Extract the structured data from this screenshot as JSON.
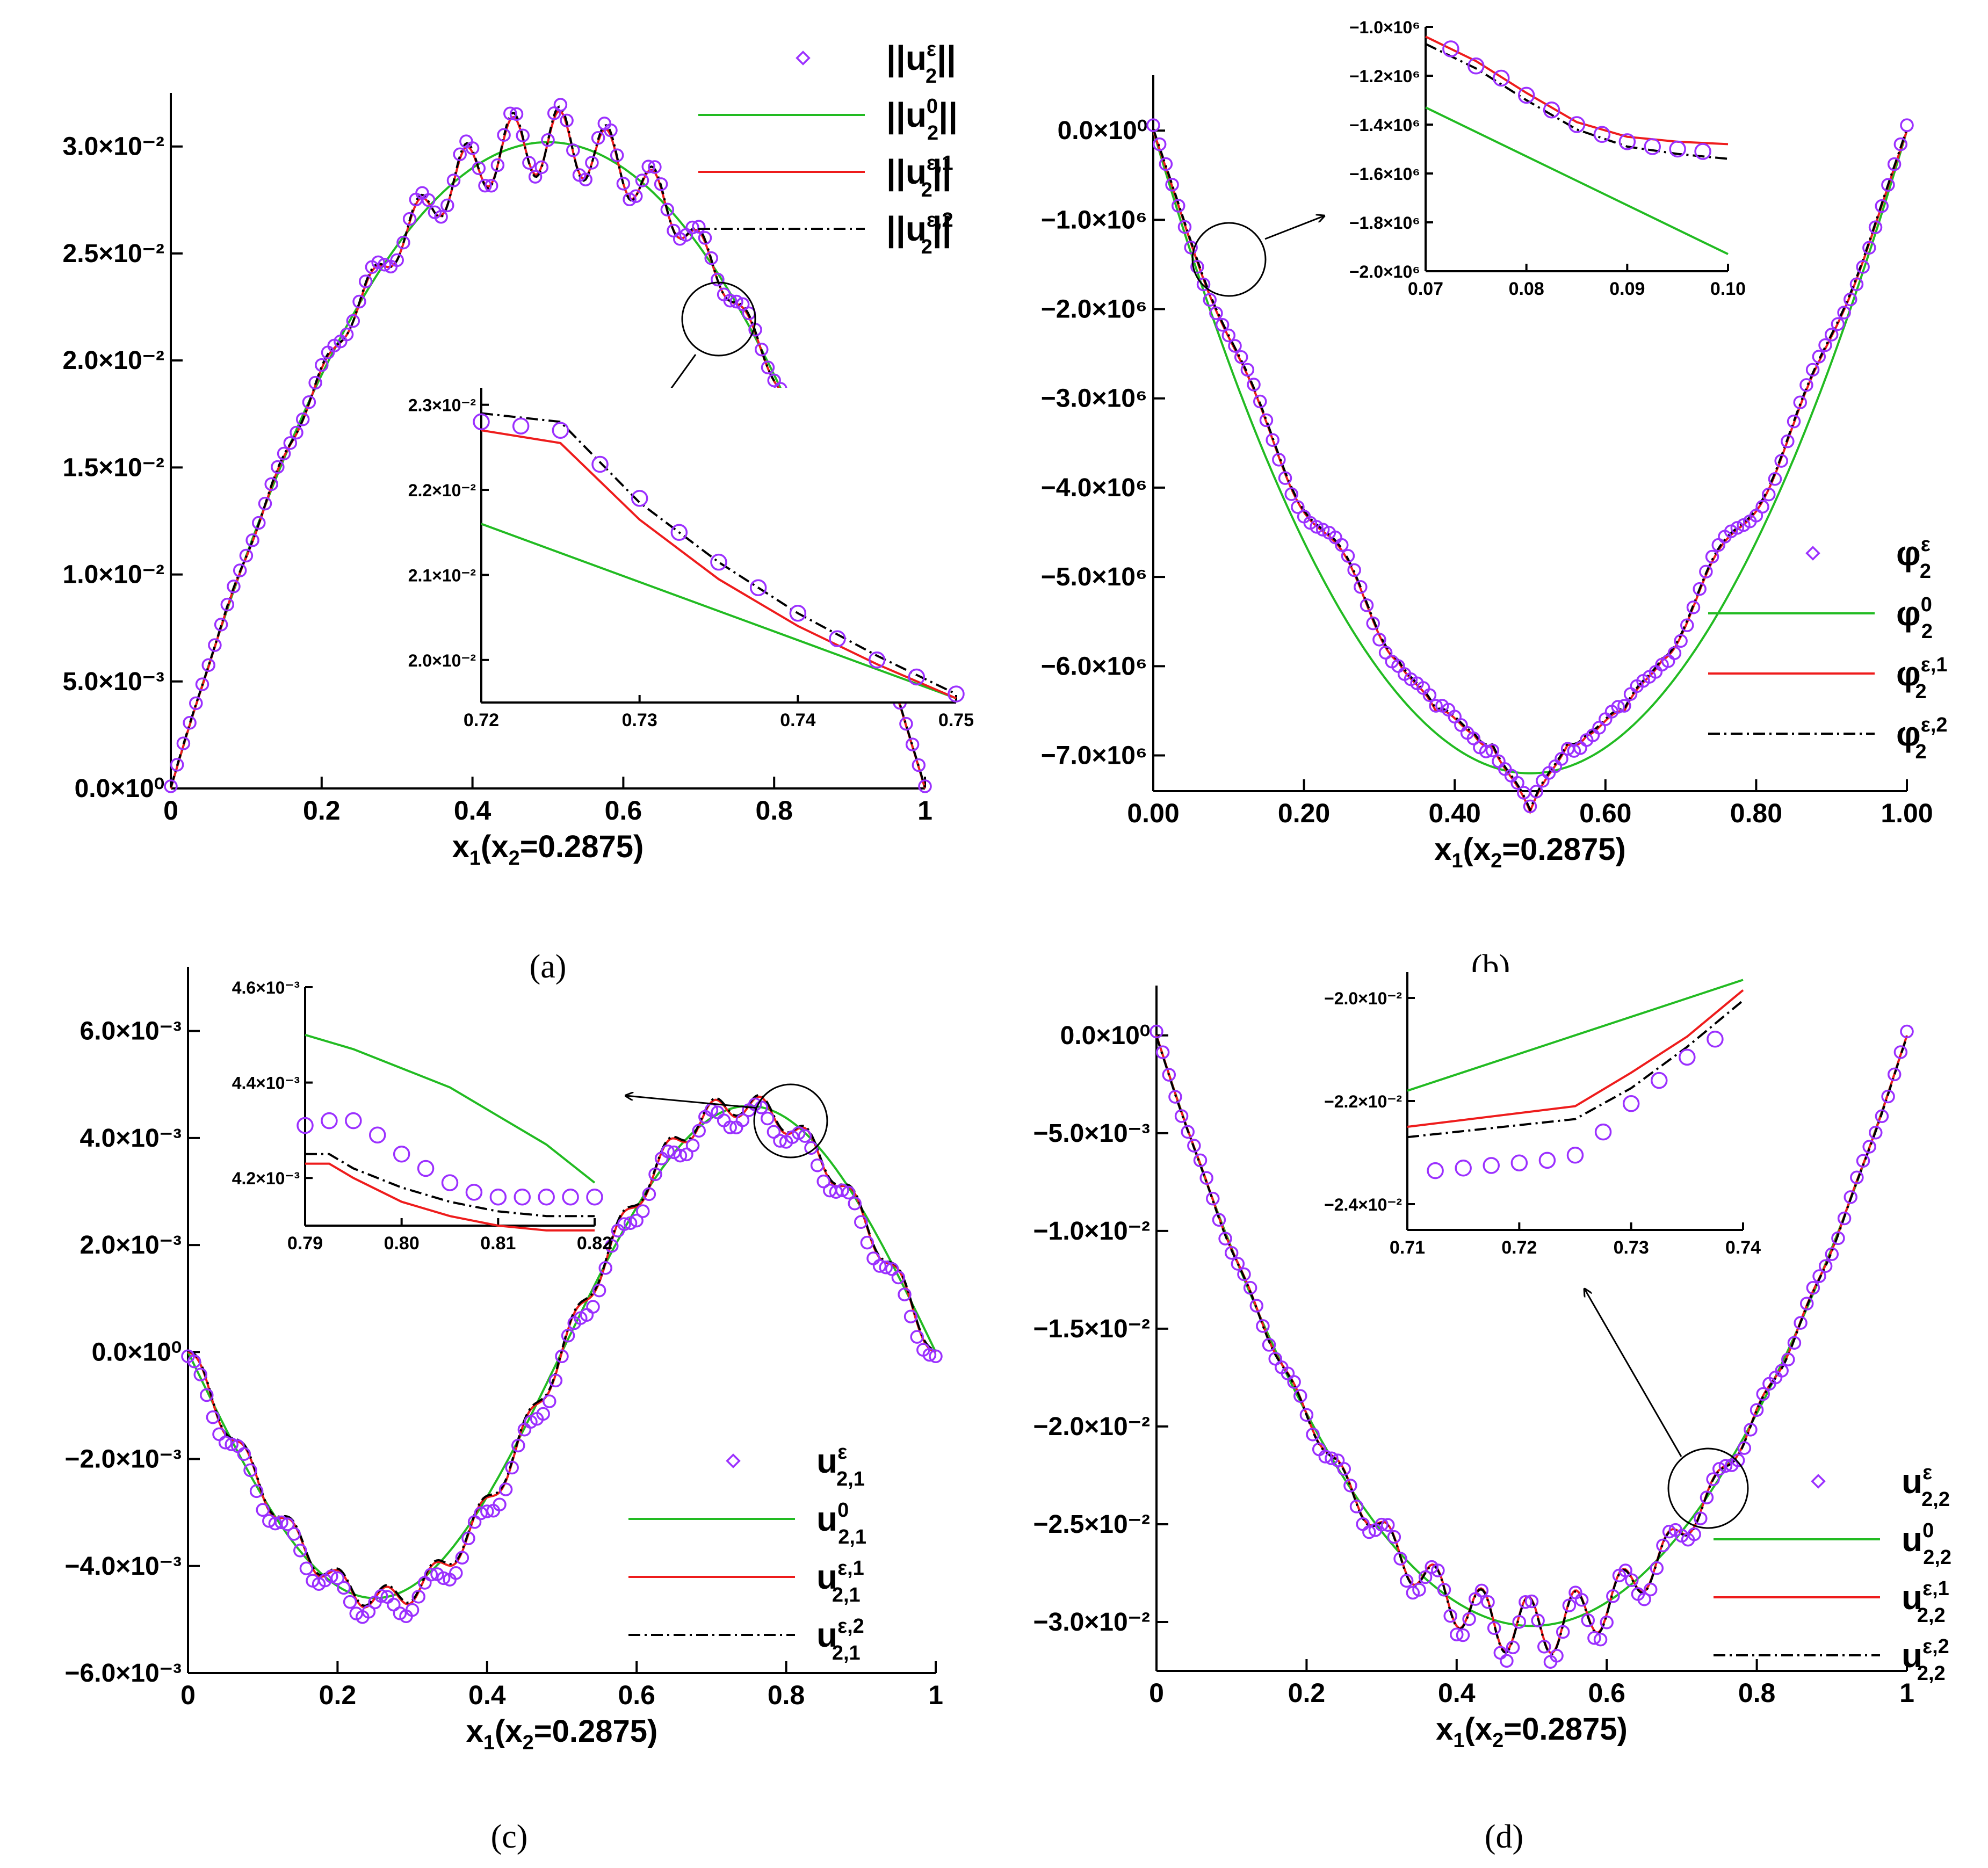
{
  "colors": {
    "exact": "#9b30ff",
    "homog": "#22bb22",
    "first": "#ee1c1c",
    "second": "#000000"
  },
  "chart_data": [
    {
      "panel": "a",
      "type": "line",
      "caption": "(a)",
      "xlabel": "x1(x2=0.2875)",
      "xlim": [
        0,
        1
      ],
      "ylim": [
        0,
        0.032
      ],
      "xticks": [
        0,
        0.2,
        0.4,
        0.6,
        0.8,
        1
      ],
      "xtick_labels": [
        "0",
        "0.2",
        "0.4",
        "0.6",
        "0.8",
        "1"
      ],
      "yticks": [
        0,
        0.005,
        0.01,
        0.015,
        0.02,
        0.025,
        0.03
      ],
      "ytick_labels": [
        "0.0×10⁰",
        "5.0×10⁻³",
        "1.0×10⁻²",
        "1.5×10⁻²",
        "2.0×10⁻²",
        "2.5×10⁻²",
        "3.0×10⁻²"
      ],
      "legend_position": "top-right",
      "legend": [
        "||u2ε||",
        "||u20||",
        "||u2ε,1||",
        "||u2ε,2||"
      ],
      "series_model": {
        "homog": "parabola peak 0.0302 at x=0.5, zero at 0 and 1",
        "oscillation": "periodic ripples, period 0.0625, amplitude up to 0.0015"
      },
      "inset": {
        "xlim": [
          0.72,
          0.75
        ],
        "ylim": [
          0.0195,
          0.0232
        ],
        "xtick_labels": [
          "0.72",
          "0.73",
          "0.74",
          "0.75"
        ],
        "ytick_labels": [
          "2.0×10⁻²",
          "2.1×10⁻²",
          "2.2×10⁻²",
          "2.3×10⁻²"
        ],
        "homog": [
          [
            0.72,
            0.0216
          ],
          [
            0.75,
            0.01955
          ]
        ],
        "first": [
          [
            0.72,
            0.0227
          ],
          [
            0.725,
            0.02255
          ],
          [
            0.73,
            0.02165
          ],
          [
            0.735,
            0.02095
          ],
          [
            0.74,
            0.0204
          ],
          [
            0.745,
            0.01995
          ],
          [
            0.75,
            0.01955
          ]
        ],
        "second": [
          [
            0.72,
            0.0229
          ],
          [
            0.725,
            0.0228
          ],
          [
            0.73,
            0.02185
          ],
          [
            0.735,
            0.02115
          ],
          [
            0.74,
            0.02055
          ],
          [
            0.745,
            0.02005
          ],
          [
            0.75,
            0.0196
          ]
        ],
        "exact": [
          [
            0.72,
            0.0228
          ],
          [
            0.7225,
            0.02275
          ],
          [
            0.725,
            0.0227
          ],
          [
            0.7275,
            0.0223
          ],
          [
            0.73,
            0.0219
          ],
          [
            0.7325,
            0.0215
          ],
          [
            0.735,
            0.02115
          ],
          [
            0.7375,
            0.02085
          ],
          [
            0.74,
            0.02055
          ],
          [
            0.7425,
            0.02025
          ],
          [
            0.745,
            0.02
          ],
          [
            0.7475,
            0.0198
          ],
          [
            0.75,
            0.0196
          ]
        ]
      }
    },
    {
      "panel": "b",
      "type": "line",
      "caption": "(b)",
      "xlabel": "x1(x2=0.2875)",
      "xlim": [
        0,
        1
      ],
      "ylim": [
        -7400000,
        500000
      ],
      "xticks": [
        0,
        0.2,
        0.4,
        0.6,
        0.8,
        1
      ],
      "xtick_labels": [
        "0.00",
        "0.20",
        "0.40",
        "0.60",
        "0.80",
        "1.00"
      ],
      "yticks": [
        0,
        -1000000,
        -2000000,
        -3000000,
        -4000000,
        -5000000,
        -6000000,
        -7000000
      ],
      "ytick_labels": [
        "0.0×10⁰",
        "−1.0×10⁶",
        "−2.0×10⁶",
        "−3.0×10⁶",
        "−4.0×10⁶",
        "−5.0×10⁶",
        "−6.0×10⁶",
        "−7.0×10⁶"
      ],
      "legend_position": "bottom-right",
      "legend": [
        "φ2ε",
        "φ20",
        "φ2ε,1",
        "φ2ε,2"
      ],
      "series_model": {
        "homog": "parabola minimum -7.2e6 at x=0.5",
        "oscillation": "ripples and cusps near x=0.375, 0.5, 0.625"
      },
      "inset": {
        "xlim": [
          0.07,
          0.1
        ],
        "ylim": [
          -2000000,
          -1000000
        ],
        "xtick_labels": [
          "0.07",
          "0.08",
          "0.09",
          "0.10"
        ],
        "ytick_labels": [
          "−1.0×10⁶",
          "−1.2×10⁶",
          "−1.4×10⁶",
          "−1.6×10⁶",
          "−1.8×10⁶",
          "−2.0×10⁶"
        ],
        "homog": [
          [
            0.07,
            -1330000
          ],
          [
            0.1,
            -1930000
          ]
        ],
        "first": [
          [
            0.07,
            -1040000
          ],
          [
            0.075,
            -1140000
          ],
          [
            0.08,
            -1270000
          ],
          [
            0.085,
            -1390000
          ],
          [
            0.09,
            -1450000
          ],
          [
            0.095,
            -1470000
          ],
          [
            0.1,
            -1480000
          ]
        ],
        "second": [
          [
            0.07,
            -1070000
          ],
          [
            0.075,
            -1170000
          ],
          [
            0.08,
            -1300000
          ],
          [
            0.085,
            -1420000
          ],
          [
            0.09,
            -1490000
          ],
          [
            0.095,
            -1520000
          ],
          [
            0.1,
            -1540000
          ]
        ],
        "exact": [
          [
            0.0725,
            -1090000
          ],
          [
            0.075,
            -1160000
          ],
          [
            0.0775,
            -1210000
          ],
          [
            0.08,
            -1280000
          ],
          [
            0.0825,
            -1340000
          ],
          [
            0.085,
            -1400000
          ],
          [
            0.0875,
            -1440000
          ],
          [
            0.09,
            -1470000
          ],
          [
            0.0925,
            -1490000
          ],
          [
            0.095,
            -1500000
          ],
          [
            0.0975,
            -1510000
          ]
        ]
      }
    },
    {
      "panel": "c",
      "type": "line",
      "caption": "(c)",
      "xlabel": "x1(x2=0.2875)",
      "xlim": [
        0,
        1
      ],
      "ylim": [
        -0.006,
        0.007
      ],
      "xticks": [
        0,
        0.2,
        0.4,
        0.6,
        0.8,
        1
      ],
      "xtick_labels": [
        "0",
        "0.2",
        "0.4",
        "0.6",
        "0.8",
        "1"
      ],
      "yticks": [
        -0.006,
        -0.004,
        -0.002,
        0,
        0.002,
        0.004,
        0.006
      ],
      "ytick_labels": [
        "−6.0×10⁻³",
        "−4.0×10⁻³",
        "−2.0×10⁻³",
        "0.0×10⁰",
        "2.0×10⁻³",
        "4.0×10⁻³",
        "6.0×10⁻³"
      ],
      "legend_position": "bottom-right",
      "legend": [
        "u2,1ε",
        "u2,10",
        "u2,1ε,1",
        "u2,1ε,2"
      ],
      "series_model": {
        "homog": "-0.0046·sin(2πx)",
        "oscillation": "small ripples"
      },
      "inset": {
        "xlim": [
          0.79,
          0.82
        ],
        "ylim": [
          0.0041,
          0.0046
        ],
        "xtick_labels": [
          "0.79",
          "0.80",
          "0.81",
          "0.82"
        ],
        "ytick_labels": [
          "4.2×10⁻³",
          "4.4×10⁻³",
          "4.6×10⁻³"
        ],
        "homog": [
          [
            0.79,
            0.0045
          ],
          [
            0.795,
            0.00447
          ],
          [
            0.8,
            0.00443
          ],
          [
            0.805,
            0.00439
          ],
          [
            0.81,
            0.00433
          ],
          [
            0.815,
            0.00427
          ],
          [
            0.82,
            0.00419
          ]
        ],
        "first": [
          [
            0.79,
            0.00423
          ],
          [
            0.7925,
            0.00423
          ],
          [
            0.795,
            0.0042
          ],
          [
            0.8,
            0.00415
          ],
          [
            0.805,
            0.00412
          ],
          [
            0.81,
            0.0041
          ],
          [
            0.815,
            0.00409
          ],
          [
            0.82,
            0.00409
          ]
        ],
        "second": [
          [
            0.79,
            0.00425
          ],
          [
            0.7925,
            0.00425
          ],
          [
            0.795,
            0.00422
          ],
          [
            0.8,
            0.00418
          ],
          [
            0.805,
            0.00415
          ],
          [
            0.81,
            0.00413
          ],
          [
            0.815,
            0.00412
          ],
          [
            0.82,
            0.00412
          ]
        ],
        "exact": [
          [
            0.79,
            0.00431
          ],
          [
            0.7925,
            0.00432
          ],
          [
            0.795,
            0.00432
          ],
          [
            0.7975,
            0.00429
          ],
          [
            0.8,
            0.00425
          ],
          [
            0.8025,
            0.00422
          ],
          [
            0.805,
            0.00419
          ],
          [
            0.8075,
            0.00417
          ],
          [
            0.81,
            0.00416
          ],
          [
            0.8125,
            0.00416
          ],
          [
            0.815,
            0.00416
          ],
          [
            0.8175,
            0.00416
          ],
          [
            0.82,
            0.00416
          ]
        ]
      }
    },
    {
      "panel": "d",
      "type": "line",
      "caption": "(d)",
      "xlabel": "x1(x2=0.2875)",
      "xlim": [
        0,
        1
      ],
      "ylim": [
        -0.0325,
        0.002
      ],
      "xticks": [
        0,
        0.2,
        0.4,
        0.6,
        0.8,
        1
      ],
      "xtick_labels": [
        "0",
        "0.2",
        "0.4",
        "0.6",
        "0.8",
        "1"
      ],
      "yticks": [
        0,
        -0.005,
        -0.01,
        -0.015,
        -0.02,
        -0.025,
        -0.03
      ],
      "ytick_labels": [
        "0.0×10⁰",
        "−5.0×10⁻³",
        "−1.0×10⁻²",
        "−1.5×10⁻²",
        "−2.0×10⁻²",
        "−2.5×10⁻²",
        "−3.0×10⁻²"
      ],
      "legend_position": "bottom-right",
      "legend": [
        "u2,2ε",
        "u2,20",
        "u2,2ε,1",
        "u2,2ε,2"
      ],
      "series_model": {
        "homog": "parabola minimum -0.0302 at x=0.5",
        "oscillation": "periodic ripples"
      },
      "inset": {
        "xlim": [
          0.71,
          0.74
        ],
        "ylim": [
          -0.0245,
          -0.0195
        ],
        "xtick_labels": [
          "0.71",
          "0.72",
          "0.73",
          "0.74"
        ],
        "ytick_labels": [
          "−2.0×10⁻²",
          "−2.2×10⁻²",
          "−2.4×10⁻²"
        ],
        "homog": [
          [
            0.71,
            -0.0218
          ],
          [
            0.74,
            -0.01965
          ]
        ],
        "first": [
          [
            0.71,
            -0.0225
          ],
          [
            0.725,
            -0.0221
          ],
          [
            0.73,
            -0.02145
          ],
          [
            0.735,
            -0.02075
          ],
          [
            0.74,
            -0.01985
          ]
        ],
        "second": [
          [
            0.71,
            -0.0227
          ],
          [
            0.725,
            -0.02235
          ],
          [
            0.73,
            -0.02175
          ],
          [
            0.735,
            -0.02095
          ],
          [
            0.74,
            -0.02005
          ]
        ],
        "exact": [
          [
            0.7125,
            -0.02335
          ],
          [
            0.715,
            -0.0233
          ],
          [
            0.7175,
            -0.02325
          ],
          [
            0.72,
            -0.0232
          ],
          [
            0.7225,
            -0.02315
          ],
          [
            0.725,
            -0.02305
          ],
          [
            0.7275,
            -0.0226
          ],
          [
            0.73,
            -0.02205
          ],
          [
            0.7325,
            -0.0216
          ],
          [
            0.735,
            -0.02115
          ],
          [
            0.7375,
            -0.0208
          ]
        ]
      }
    }
  ]
}
